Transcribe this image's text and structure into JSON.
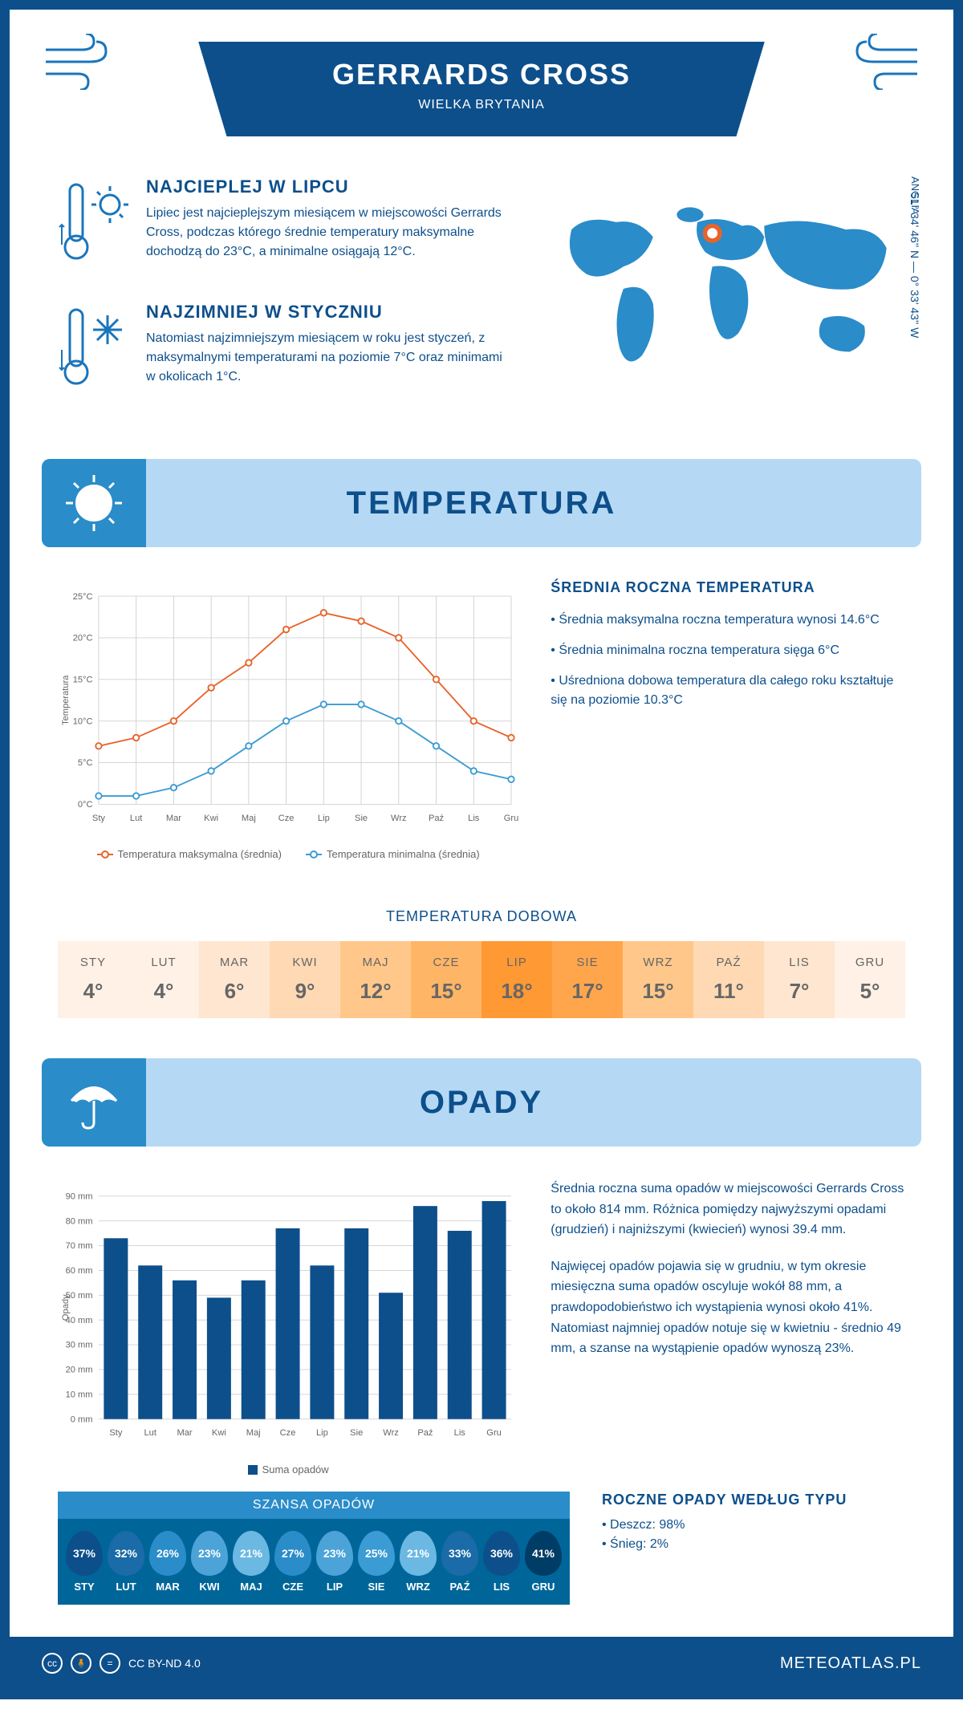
{
  "header": {
    "title": "GERRARDS CROSS",
    "subtitle": "WIELKA BRYTANIA"
  },
  "coords": "51° 34' 46'' N — 0° 33' 43'' W",
  "region": "ANGLIA",
  "warmest": {
    "title": "NAJCIEPLEJ W LIPCU",
    "text": "Lipiec jest najcieplejszym miesiącem w miejscowości Gerrards Cross, podczas którego średnie temperatury maksymalne dochodzą do 23°C, a minimalne osiągają 12°C."
  },
  "coldest": {
    "title": "NAJZIMNIEJ W STYCZNIU",
    "text": "Natomiast najzimniejszym miesiącem w roku jest styczeń, z maksymalnymi temperaturami na poziomie 7°C oraz minimami w okolicach 1°C."
  },
  "temp_section": {
    "title": "TEMPERATURA",
    "info_title": "ŚREDNIA ROCZNA TEMPERATURA",
    "bullets": [
      "• Średnia maksymalna roczna temperatura wynosi 14.6°C",
      "• Średnia minimalna roczna temperatura sięga 6°C",
      "• Uśredniona dobowa temperatura dla całego roku kształtuje się na poziomie 10.3°C"
    ],
    "chart": {
      "months": [
        "Sty",
        "Lut",
        "Mar",
        "Kwi",
        "Maj",
        "Cze",
        "Lip",
        "Sie",
        "Wrz",
        "Paź",
        "Lis",
        "Gru"
      ],
      "max": [
        7,
        8,
        10,
        14,
        17,
        21,
        23,
        22,
        20,
        15,
        10,
        8
      ],
      "min": [
        1,
        1,
        2,
        4,
        7,
        10,
        12,
        12,
        10,
        7,
        4,
        3
      ],
      "ylim": [
        0,
        25
      ],
      "ytick_step": 5,
      "ylabel": "Temperatura",
      "max_color": "#e8632a",
      "min_color": "#3b9bd4",
      "grid_color": "#d0d0d0",
      "legend_max": "Temperatura maksymalna (średnia)",
      "legend_min": "Temperatura minimalna (średnia)"
    }
  },
  "daily": {
    "title": "TEMPERATURA DOBOWA",
    "months": [
      "STY",
      "LUT",
      "MAR",
      "KWI",
      "MAJ",
      "CZE",
      "LIP",
      "SIE",
      "WRZ",
      "PAŹ",
      "LIS",
      "GRU"
    ],
    "values": [
      "4°",
      "4°",
      "6°",
      "9°",
      "12°",
      "15°",
      "18°",
      "17°",
      "15°",
      "11°",
      "7°",
      "5°"
    ],
    "colors": [
      "#fff1e6",
      "#fff1e6",
      "#ffe6d0",
      "#ffd9b3",
      "#ffc88a",
      "#ffb566",
      "#ff9933",
      "#ffa64d",
      "#ffc88a",
      "#ffd9b3",
      "#ffe6d0",
      "#fff1e6"
    ]
  },
  "precip_section": {
    "title": "OPADY",
    "text1": "Średnia roczna suma opadów w miejscowości Gerrards Cross to około 814 mm. Różnica pomiędzy najwyższymi opadami (grudzień) i najniższymi (kwiecień) wynosi 39.4 mm.",
    "text2": "Najwięcej opadów pojawia się w grudniu, w tym okresie miesięczna suma opadów oscyluje wokół 88 mm, a prawdopodobieństwo ich wystąpienia wynosi około 41%. Natomiast najmniej opadów notuje się w kwietniu - średnio 49 mm, a szanse na wystąpienie opadów wynoszą 23%.",
    "chart": {
      "months": [
        "Sty",
        "Lut",
        "Mar",
        "Kwi",
        "Maj",
        "Cze",
        "Lip",
        "Sie",
        "Wrz",
        "Paź",
        "Lis",
        "Gru"
      ],
      "values": [
        73,
        62,
        56,
        49,
        56,
        77,
        62,
        77,
        51,
        86,
        76,
        88
      ],
      "ylim": [
        0,
        90
      ],
      "ytick_step": 10,
      "ylabel": "Opady",
      "bar_color": "#0d4f8b",
      "grid_color": "#d0d0d0",
      "legend": "Suma opadów"
    },
    "chance": {
      "title": "SZANSA OPADÓW",
      "months": [
        "STY",
        "LUT",
        "MAR",
        "KWI",
        "MAJ",
        "CZE",
        "LIP",
        "SIE",
        "WRZ",
        "PAŹ",
        "LIS",
        "GRU"
      ],
      "values": [
        "37%",
        "32%",
        "26%",
        "23%",
        "21%",
        "27%",
        "23%",
        "25%",
        "21%",
        "33%",
        "36%",
        "41%"
      ],
      "colors": [
        "#0d4f8b",
        "#1a6ba8",
        "#2a8cc9",
        "#4ba3d8",
        "#6bb8e3",
        "#2a8cc9",
        "#4ba3d8",
        "#3b9bd4",
        "#6bb8e3",
        "#1a6ba8",
        "#0d4f8b",
        "#003d66"
      ]
    },
    "type": {
      "title": "ROCZNE OPADY WEDŁUG TYPU",
      "rain": "• Deszcz: 98%",
      "snow": "• Śnieg: 2%"
    }
  },
  "footer": {
    "license": "CC BY-ND 4.0",
    "site": "METEOATLAS.PL"
  }
}
